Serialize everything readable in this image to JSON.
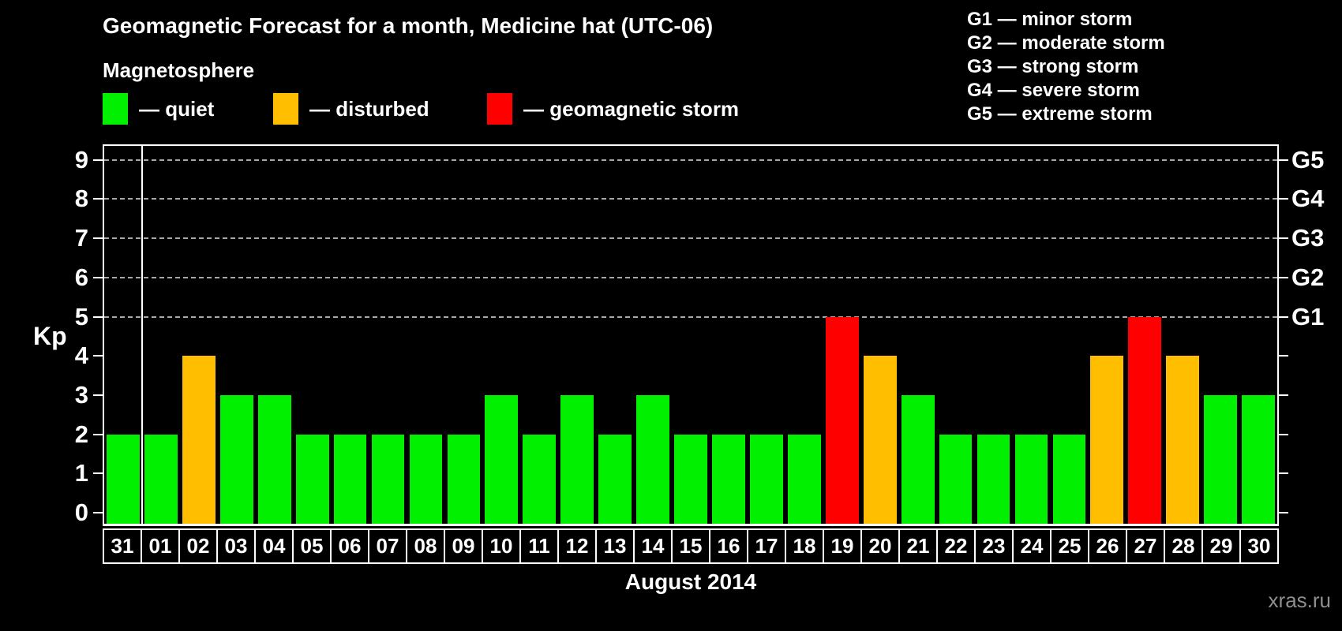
{
  "header": {
    "title": "Geomagnetic Forecast for a month, Medicine hat (UTC-06)",
    "subtitle": "Magnetosphere",
    "watermark": "xras.ru"
  },
  "legend": {
    "items": [
      {
        "status": "quiet",
        "label": "— quiet",
        "color": "#00f000"
      },
      {
        "status": "disturbed",
        "label": "— disturbed",
        "color": "#ffbe00"
      },
      {
        "status": "storm",
        "label": "— geomagnetic storm",
        "color": "#ff0000"
      }
    ]
  },
  "g_legend": {
    "items": [
      "G1 — minor storm",
      "G2 — moderate storm",
      "G3 — strong storm",
      "G4 — severe storm",
      "G5 — extreme storm"
    ]
  },
  "chart_data": {
    "type": "bar",
    "title": "Geomagnetic Forecast for a month, Medicine hat (UTC-06)",
    "xlabel": "August 2014",
    "ylabel": "Kp",
    "ylim": [
      0,
      9.4
    ],
    "yticks": [
      0,
      1,
      2,
      3,
      4,
      5,
      6,
      7,
      8,
      9
    ],
    "gridlines_at": [
      5,
      6,
      7,
      8,
      9
    ],
    "grid": "dashed horizontal at storm levels only",
    "legend_position": "top",
    "right_axis_labels": [
      {
        "kp": 5,
        "label": "G1"
      },
      {
        "kp": 6,
        "label": "G2"
      },
      {
        "kp": 7,
        "label": "G3"
      },
      {
        "kp": 8,
        "label": "G4"
      },
      {
        "kp": 9,
        "label": "G5"
      }
    ],
    "month_separator_after_index": 0,
    "categories": [
      "31",
      "01",
      "02",
      "03",
      "04",
      "05",
      "06",
      "07",
      "08",
      "09",
      "10",
      "11",
      "12",
      "13",
      "14",
      "15",
      "16",
      "17",
      "18",
      "19",
      "20",
      "21",
      "22",
      "23",
      "24",
      "25",
      "26",
      "27",
      "28",
      "29",
      "30"
    ],
    "values": [
      2,
      2,
      4,
      3,
      3,
      2,
      2,
      2,
      2,
      2,
      3,
      2,
      3,
      2,
      3,
      2,
      2,
      2,
      2,
      5,
      4,
      3,
      2,
      2,
      2,
      2,
      4,
      5,
      4,
      3,
      3
    ],
    "statuses": [
      "quiet",
      "quiet",
      "disturbed",
      "quiet",
      "quiet",
      "quiet",
      "quiet",
      "quiet",
      "quiet",
      "quiet",
      "quiet",
      "quiet",
      "quiet",
      "quiet",
      "quiet",
      "quiet",
      "quiet",
      "quiet",
      "quiet",
      "storm",
      "disturbed",
      "quiet",
      "quiet",
      "quiet",
      "quiet",
      "quiet",
      "disturbed",
      "storm",
      "disturbed",
      "quiet",
      "quiet"
    ],
    "colors": {
      "quiet": "#00f000",
      "disturbed": "#ffbe00",
      "storm": "#ff0000"
    }
  }
}
